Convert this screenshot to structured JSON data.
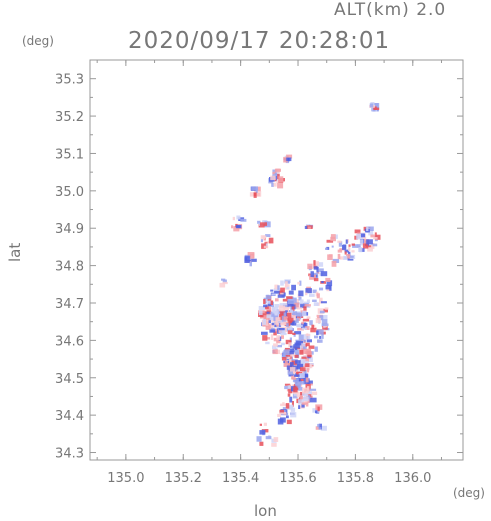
{
  "header": {
    "altitude_label": "ALT(km)  2.0",
    "datetime": "2020/09/17 20:28:01"
  },
  "chart_data": {
    "type": "scatter",
    "title": "2020/09/17 20:28:01",
    "xlabel": "lon",
    "ylabel": "lat",
    "x_unit": "(deg)",
    "y_unit": "(deg)",
    "xlim": [
      134.875,
      136.175
    ],
    "ylim": [
      34.28,
      35.35
    ],
    "x_ticks": [
      135.0,
      135.2,
      135.4,
      135.6,
      135.8,
      136.0
    ],
    "x_tick_labels": [
      "135.0",
      "135.2",
      "135.4",
      "135.6",
      "135.8",
      "136.0"
    ],
    "y_ticks": [
      34.3,
      34.4,
      34.5,
      34.6,
      34.7,
      34.8,
      34.9,
      35.0,
      35.1,
      35.2,
      35.3
    ],
    "y_tick_labels": [
      "34.3",
      "34.4",
      "34.5",
      "34.6",
      "34.7",
      "34.8",
      "34.9",
      "35.0",
      "35.1",
      "35.2",
      "35.3"
    ],
    "grid": false,
    "colors": {
      "positive": "#e8505a",
      "negative": "#5060e0",
      "axis": "#999999"
    },
    "clusters": [
      {
        "lon": 135.86,
        "lat": 35.23,
        "r": 0.012,
        "n": 10
      },
      {
        "lon": 135.56,
        "lat": 35.09,
        "r": 0.012,
        "n": 8
      },
      {
        "lon": 135.52,
        "lat": 35.04,
        "r": 0.025,
        "n": 22
      },
      {
        "lon": 135.44,
        "lat": 35.0,
        "r": 0.015,
        "n": 10
      },
      {
        "lon": 135.38,
        "lat": 34.92,
        "r": 0.02,
        "n": 10
      },
      {
        "lon": 135.47,
        "lat": 34.92,
        "r": 0.015,
        "n": 8
      },
      {
        "lon": 135.63,
        "lat": 34.91,
        "r": 0.01,
        "n": 5
      },
      {
        "lon": 135.48,
        "lat": 34.87,
        "r": 0.02,
        "n": 12
      },
      {
        "lon": 135.43,
        "lat": 34.82,
        "r": 0.02,
        "n": 10
      },
      {
        "lon": 135.83,
        "lat": 34.88,
        "r": 0.04,
        "n": 35
      },
      {
        "lon": 135.74,
        "lat": 34.85,
        "r": 0.05,
        "n": 35
      },
      {
        "lon": 135.65,
        "lat": 34.79,
        "r": 0.03,
        "n": 18
      },
      {
        "lon": 135.69,
        "lat": 34.75,
        "r": 0.02,
        "n": 8
      },
      {
        "lon": 135.33,
        "lat": 34.76,
        "r": 0.01,
        "n": 4
      },
      {
        "lon": 135.58,
        "lat": 34.66,
        "r": 0.12,
        "n": 230
      },
      {
        "lon": 135.52,
        "lat": 34.68,
        "r": 0.06,
        "n": 80
      },
      {
        "lon": 135.59,
        "lat": 34.55,
        "r": 0.05,
        "n": 90
      },
      {
        "lon": 135.6,
        "lat": 34.47,
        "r": 0.05,
        "n": 80
      },
      {
        "lon": 135.55,
        "lat": 34.41,
        "r": 0.03,
        "n": 20
      },
      {
        "lon": 135.66,
        "lat": 34.42,
        "r": 0.01,
        "n": 6
      },
      {
        "lon": 135.48,
        "lat": 34.35,
        "r": 0.04,
        "n": 12
      },
      {
        "lon": 135.67,
        "lat": 34.37,
        "r": 0.01,
        "n": 5
      }
    ]
  }
}
